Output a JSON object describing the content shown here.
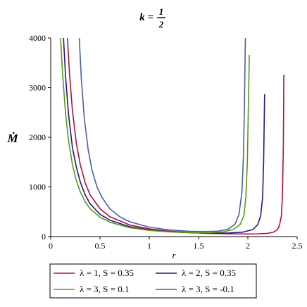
{
  "chart_data": {
    "type": "line",
    "title": {
      "prefix": "k =",
      "numerator": "1",
      "denominator": "2"
    },
    "xlabel": "r",
    "ylabel": "Ṁ",
    "xlim": [
      0,
      2.5
    ],
    "ylim": [
      0,
      4000
    ],
    "xticks": [
      {
        "value": 0,
        "label": "0"
      },
      {
        "value": 0.5,
        "label": "0.5"
      },
      {
        "value": 1,
        "label": "1"
      },
      {
        "value": 1.5,
        "label": "1.5"
      },
      {
        "value": 2,
        "label": "2"
      },
      {
        "value": 2.5,
        "label": "2.5"
      }
    ],
    "yticks": [
      {
        "value": 0,
        "label": "0"
      },
      {
        "value": 1000,
        "label": "1000"
      },
      {
        "value": 2000,
        "label": "2000"
      },
      {
        "value": 3000,
        "label": "3000"
      },
      {
        "value": 4000,
        "label": "4000"
      }
    ],
    "grid": false,
    "legend_position": "bottom",
    "series": [
      {
        "name": "λ = 1, S = 0.35",
        "color": "#b0103a",
        "x": [
          0.17,
          0.19,
          0.22,
          0.26,
          0.3,
          0.35,
          0.4,
          0.5,
          0.6,
          0.8,
          1.0,
          1.2,
          1.4,
          1.6,
          1.8,
          2.0,
          2.1,
          2.2,
          2.26,
          2.3,
          2.32,
          2.34,
          2.35,
          2.36,
          2.365
        ],
        "y": [
          4000,
          3300,
          2550,
          1880,
          1450,
          1080,
          840,
          560,
          400,
          235,
          155,
          110,
          82,
          65,
          55,
          52,
          55,
          65,
          90,
          140,
          220,
          420,
          800,
          1800,
          3260
        ]
      },
      {
        "name": "λ = 2, S = 0.35",
        "color": "#1a1a8c",
        "x": [
          0.13,
          0.15,
          0.18,
          0.22,
          0.26,
          0.3,
          0.35,
          0.4,
          0.5,
          0.6,
          0.8,
          1.0,
          1.2,
          1.4,
          1.6,
          1.8,
          1.95,
          2.05,
          2.1,
          2.13,
          2.15,
          2.16,
          2.17
        ],
        "y": [
          4000,
          3250,
          2480,
          1800,
          1400,
          1100,
          840,
          660,
          450,
          330,
          200,
          135,
          98,
          78,
          70,
          72,
          90,
          140,
          240,
          420,
          800,
          1500,
          2870
        ]
      },
      {
        "name": "λ = 3, S = 0.1",
        "color": "#5a9a12",
        "x": [
          0.1,
          0.12,
          0.15,
          0.18,
          0.22,
          0.26,
          0.3,
          0.35,
          0.4,
          0.5,
          0.6,
          0.8,
          1.0,
          1.2,
          1.4,
          1.6,
          1.75,
          1.85,
          1.92,
          1.96,
          1.98,
          1.995,
          2.005,
          2.015
        ],
        "y": [
          4000,
          3300,
          2500,
          1950,
          1450,
          1130,
          900,
          700,
          560,
          390,
          290,
          180,
          125,
          95,
          80,
          78,
          95,
          140,
          240,
          420,
          800,
          1500,
          2600,
          3660
        ]
      },
      {
        "name": "λ = 3, S = -0.1",
        "color": "#4a5fa8",
        "x": [
          0.29,
          0.31,
          0.34,
          0.38,
          0.42,
          0.47,
          0.52,
          0.6,
          0.7,
          0.8,
          1.0,
          1.2,
          1.4,
          1.55,
          1.7,
          1.8,
          1.87,
          1.91,
          1.94,
          1.955,
          1.965,
          1.975
        ],
        "y": [
          4000,
          3200,
          2400,
          1750,
          1330,
          1000,
          790,
          560,
          400,
          300,
          190,
          135,
          108,
          100,
          110,
          150,
          250,
          450,
          900,
          1600,
          2600,
          4000
        ]
      }
    ]
  }
}
